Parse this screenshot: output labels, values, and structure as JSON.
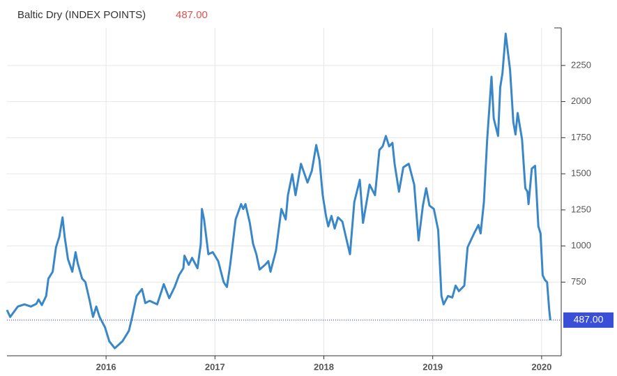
{
  "chart_data": {
    "type": "line",
    "title": "Baltic Dry (INDEX POINTS)",
    "current": {
      "value": 487,
      "label": "487.00"
    },
    "x": [
      2015.09,
      2015.12,
      2015.19,
      2015.25,
      2015.31,
      2015.36,
      2015.38,
      2015.41,
      2015.45,
      2015.47,
      2015.51,
      2015.54,
      2015.57,
      2015.6,
      2015.62,
      2015.65,
      2015.69,
      2015.72,
      2015.74,
      2015.78,
      2015.81,
      2015.85,
      2015.88,
      2015.91,
      2015.94,
      2015.99,
      2016.03,
      2016.08,
      2016.15,
      2016.21,
      2016.24,
      2016.28,
      2016.33,
      2016.36,
      2016.4,
      2016.47,
      2016.53,
      2016.58,
      2016.63,
      2016.67,
      2016.71,
      2016.72,
      2016.76,
      2016.79,
      2016.84,
      2016.87,
      2016.88,
      2016.9,
      2016.94,
      2016.98,
      2017.03,
      2017.08,
      2017.11,
      2017.14,
      2017.19,
      2017.24,
      2017.26,
      2017.28,
      2017.32,
      2017.35,
      2017.38,
      2017.41,
      2017.46,
      2017.49,
      2017.51,
      2017.56,
      2017.61,
      2017.65,
      2017.67,
      2017.71,
      2017.74,
      2017.79,
      2017.85,
      2017.89,
      2017.93,
      2017.96,
      2017.99,
      2018.02,
      2018.04,
      2018.07,
      2018.1,
      2018.13,
      2018.17,
      2018.21,
      2018.24,
      2018.28,
      2018.33,
      2018.36,
      2018.42,
      2018.47,
      2018.51,
      2018.54,
      2018.57,
      2018.6,
      2018.63,
      2018.65,
      2018.69,
      2018.73,
      2018.78,
      2018.83,
      2018.87,
      2018.91,
      2018.94,
      2018.97,
      2019.01,
      2019.05,
      2019.08,
      2019.1,
      2019.14,
      2019.18,
      2019.21,
      2019.24,
      2019.29,
      2019.32,
      2019.38,
      2019.42,
      2019.44,
      2019.47,
      2019.5,
      2019.54,
      2019.56,
      2019.6,
      2019.62,
      2019.64,
      2019.67,
      2019.71,
      2019.74,
      2019.76,
      2019.78,
      2019.82,
      2019.85,
      2019.87,
      2019.88,
      2019.91,
      2019.94,
      2019.97,
      2019.99,
      2020.01,
      2020.03,
      2020.05,
      2020.07,
      2020.08
    ],
    "series": [
      {
        "name": "Baltic Dry",
        "color": "#3a87c8",
        "values": [
          557,
          509,
          581,
          596,
          581,
          600,
          630,
          591,
          654,
          774,
          822,
          991,
          1063,
          1198,
          1063,
          909,
          822,
          957,
          880,
          774,
          750,
          620,
          509,
          581,
          509,
          437,
          340,
          292,
          340,
          413,
          509,
          654,
          702,
          605,
          620,
          596,
          736,
          639,
          716,
          798,
          846,
          933,
          870,
          918,
          846,
          1015,
          1256,
          1184,
          943,
          957,
          895,
          750,
          716,
          870,
          1184,
          1290,
          1256,
          1290,
          1160,
          1015,
          943,
          837,
          870,
          895,
          822,
          967,
          1256,
          1184,
          1352,
          1497,
          1352,
          1569,
          1439,
          1521,
          1699,
          1593,
          1352,
          1208,
          1136,
          1208,
          1121,
          1198,
          1169,
          1039,
          943,
          1304,
          1458,
          1160,
          1425,
          1352,
          1665,
          1690,
          1762,
          1690,
          1714,
          1569,
          1376,
          1545,
          1569,
          1425,
          1039,
          1280,
          1400,
          1280,
          1256,
          1111,
          654,
          596,
          654,
          644,
          726,
          687,
          726,
          991,
          1087,
          1145,
          1087,
          1304,
          1738,
          2172,
          1883,
          1762,
          2099,
          2196,
          2470,
          2220,
          1858,
          1772,
          1921,
          1738,
          1400,
          1376,
          1290,
          1536,
          1555,
          1136,
          1087,
          798,
          765,
          750,
          557,
          487
        ]
      }
    ],
    "xlim": [
      2015.09,
      2020.18
    ],
    "xticks": [
      2016,
      2017,
      2018,
      2019,
      2020
    ],
    "ylim": [
      240,
      2510
    ],
    "yticks": [
      750,
      1000,
      1250,
      1500,
      1750,
      2000,
      2250
    ],
    "grid": true
  }
}
